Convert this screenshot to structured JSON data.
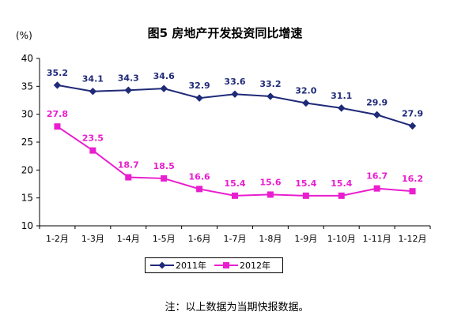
{
  "title": "图5 房地产开发投资同比增速",
  "unit_label": "(%)",
  "note": "注：以上数据为当期快报数据。",
  "colors": {
    "series_2011": "#1f2a78",
    "series_2012": "#e91ecf"
  },
  "chart_data": {
    "type": "line",
    "title": "图5 房地产开发投资同比增速",
    "xlabel": "",
    "ylabel": "(%)",
    "ylim": [
      10,
      40
    ],
    "yticks": [
      10,
      15,
      20,
      25,
      30,
      35,
      40
    ],
    "categories": [
      "1-2月",
      "1-3月",
      "1-4月",
      "1-5月",
      "1-6月",
      "1-7月",
      "1-8月",
      "1-9月",
      "1-10月",
      "1-11月",
      "1-12月"
    ],
    "grid": false,
    "legend_position": "bottom",
    "series": [
      {
        "name": "2011年",
        "marker": "diamond",
        "values": [
          35.2,
          34.1,
          34.3,
          34.6,
          32.9,
          33.6,
          33.2,
          32.0,
          31.1,
          29.9,
          27.9
        ],
        "labels": [
          "35.2",
          "34.1",
          "34.3",
          "34.6",
          "32.9",
          "33.6",
          "33.2",
          "32.0",
          "31.1",
          "29.9",
          "27.9"
        ]
      },
      {
        "name": "2012年",
        "marker": "square",
        "values": [
          27.8,
          23.5,
          18.7,
          18.5,
          16.6,
          15.4,
          15.6,
          15.4,
          15.4,
          16.7,
          16.2
        ],
        "labels": [
          "27.8",
          "23.5",
          "18.7",
          "18.5",
          "16.6",
          "15.4",
          "15.6",
          "15.4",
          "15.4",
          "16.7",
          "16.2"
        ]
      }
    ]
  },
  "legend": {
    "items": [
      {
        "label": "2011年",
        "marker": "diamond-icon"
      },
      {
        "label": "2012年",
        "marker": "square-icon"
      }
    ]
  }
}
